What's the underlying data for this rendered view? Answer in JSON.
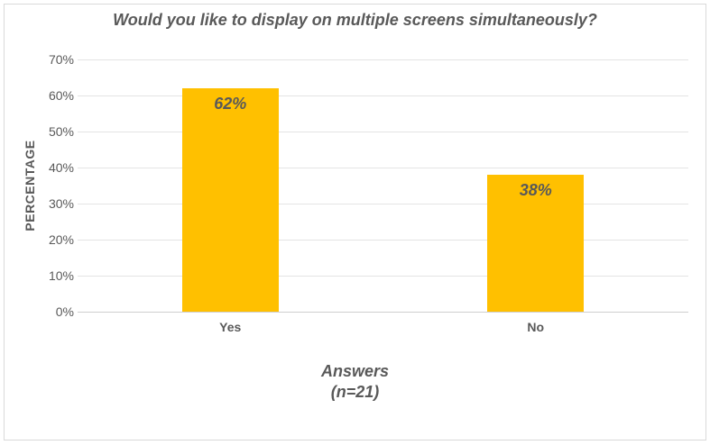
{
  "chart_data": {
    "type": "bar",
    "title": "Would you like to display on multiple screens simultaneously?",
    "categories": [
      "Yes",
      "No"
    ],
    "values": [
      62,
      38
    ],
    "value_labels": [
      "62%",
      "38%"
    ],
    "ylabel": "PERCENTAGE",
    "xlabel_line1": "Answers",
    "xlabel_line2": "(n=21)",
    "ylim": [
      0,
      70
    ],
    "ytick_step": 10,
    "ytick_labels": [
      "0%",
      "10%",
      "20%",
      "30%",
      "40%",
      "50%",
      "60%",
      "70%"
    ],
    "grid": true,
    "legend": "none",
    "colors": {
      "bar": "#FFC000",
      "text": "#595959",
      "gridline": "#e4e4e4",
      "axis_line": "#cfcfcf",
      "border": "#d9d9d9",
      "background": "#ffffff"
    }
  }
}
